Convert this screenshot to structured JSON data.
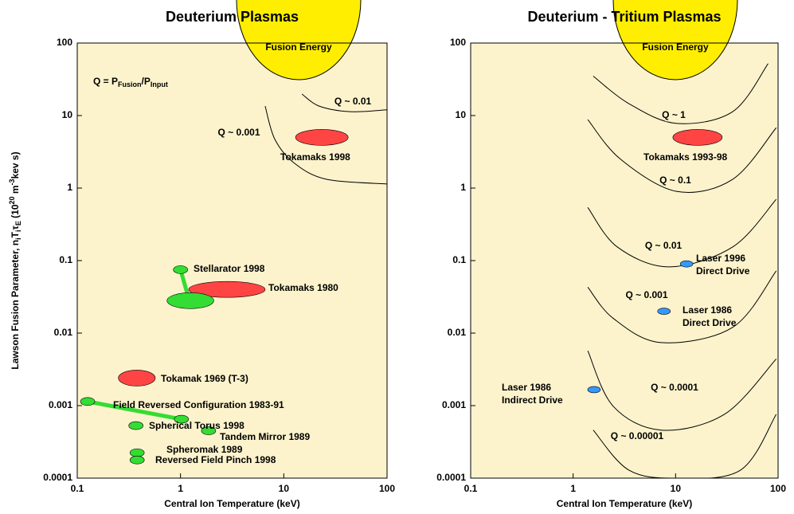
{
  "chart_data": [
    {
      "type": "scatter",
      "title": "Deuterium Plasmas",
      "xlabel": "Central Ion Temperature (keV)",
      "ylabel": [
        {
          "text": "Lawson Fusion Parameter, n"
        },
        {
          "text": "i",
          "sub": true
        },
        {
          "text": "T"
        },
        {
          "text": "i",
          "sub": true
        },
        {
          "text": "τ"
        },
        {
          "text": "E",
          "sub": true
        },
        {
          "text": " (10"
        },
        {
          "text": "20",
          "sup": true
        },
        {
          "text": " m"
        },
        {
          "text": "-3",
          "sup": true
        },
        {
          "text": "kev s)"
        }
      ],
      "annotation": [
        {
          "text": "Q = P"
        },
        {
          "text": "Fusion",
          "sub": true
        },
        {
          "text": "/P"
        },
        {
          "text": "Input",
          "sub": true
        }
      ],
      "region_label": "Fusion Energy",
      "xscale": "log",
      "yscale": "log",
      "xlim": [
        0.1,
        100
      ],
      "ylim": [
        0.0001,
        100
      ],
      "xticks": [
        0.1,
        1,
        10,
        100
      ],
      "yticks": [
        100,
        10,
        1,
        0.1,
        0.01,
        0.001,
        0.0001
      ],
      "background": "#fcf3cc",
      "curves": [
        {
          "name": "Q ~ 0.01",
          "x": [
            15,
            22,
            44,
            100
          ],
          "y": [
            19.8,
            13.5,
            11.3,
            12
          ]
        },
        {
          "name": "Q ~ 0.001",
          "x": [
            6.6,
            8.2,
            12.7,
            26,
            100
          ],
          "y": [
            13.5,
            4.7,
            2.2,
            1.32,
            1.14
          ]
        }
      ],
      "tracks": [
        {
          "x": [
            1.0,
            1.2
          ],
          "y": [
            0.075,
            0.03
          ],
          "color": "#33dd33"
        },
        {
          "name": [
            "Field Reversed Configuration 1983-91"
          ],
          "x": [
            0.126,
            1.02
          ],
          "y": [
            0.00114,
            0.00065
          ],
          "color": "#33dd33"
        }
      ],
      "regions": [
        {
          "name": [
            "Tokamaks 1998"
          ],
          "x": [
            13,
            42
          ],
          "y": 5,
          "color": "#ff4444"
        },
        {
          "name": [
            "Tokamaks  1980"
          ],
          "x": [
            1.2,
            6.6
          ],
          "y": 0.04,
          "color": "#ff4444"
        },
        {
          "name": [
            "Stellarator  1998"
          ],
          "x": 1.0,
          "y": 0.075,
          "color": "#33dd33"
        },
        {
          "x": [
            0.74,
            2.1
          ],
          "y": 0.028,
          "color": "#33dd33"
        },
        {
          "name": [
            "Tokamak  1969 (T-3)"
          ],
          "x": [
            0.25,
            0.57
          ],
          "y": 0.0024,
          "color": "#ff4444"
        },
        {
          "name": [
            "Spherical Torus  1998"
          ],
          "x": 0.37,
          "y": 0.00053,
          "color": "#33dd33"
        },
        {
          "name": [
            "Tandem Mirror 1989"
          ],
          "x": 1.87,
          "y": 0.00045,
          "color": "#33dd33"
        },
        {
          "name": [
            "Spheromak 1989"
          ],
          "x": 0.38,
          "y": 0.000224,
          "color": "#33dd33"
        },
        {
          "name": [
            "Reversed Field Pinch  1998"
          ],
          "x": 0.38,
          "y": 0.000178,
          "color": "#33dd33"
        }
      ]
    },
    {
      "type": "scatter",
      "title": "Deuterium - Tritium Plasmas",
      "xlabel": "Central Ion Temperature (keV)",
      "region_label": "Fusion Energy",
      "xscale": "log",
      "yscale": "log",
      "xlim": [
        0.1,
        100
      ],
      "ylim": [
        0.0001,
        100
      ],
      "xticks": [
        0.1,
        1,
        10,
        100
      ],
      "yticks": [
        100,
        10,
        1,
        0.1,
        0.01,
        0.001,
        0.0001
      ],
      "background": "#fcf3cc",
      "curves": [
        {
          "name": "Q ~ 1",
          "x": [
            1.57,
            3.5,
            10.2,
            36,
            80
          ],
          "y": [
            35,
            14.6,
            7.8,
            11.3,
            52
          ]
        },
        {
          "name": "Q ~ 0.1",
          "x": [
            1.39,
            2.9,
            10.2,
            36,
            96
          ],
          "y": [
            8.8,
            2.5,
            0.9,
            1.32,
            6.8
          ]
        },
        {
          "name": "Q ~ 0.01",
          "x": [
            1.39,
            2.7,
            8.6,
            36,
            96
          ],
          "y": [
            0.54,
            0.154,
            0.082,
            0.154,
            0.7
          ]
        },
        {
          "name": "Q ~ 0.001",
          "x": [
            1.39,
            2.46,
            7.2,
            36,
            96
          ],
          "y": [
            0.043,
            0.016,
            0.0074,
            0.012,
            0.072
          ]
        },
        {
          "name": "Q ~ 0.0001",
          "x": [
            1.39,
            2.46,
            7.2,
            30,
            96
          ],
          "y": [
            0.0057,
            0.00098,
            0.00046,
            0.00076,
            0.0044
          ]
        },
        {
          "name": "Q ~ 0.00001",
          "x": [
            1.57,
            3.5,
            10.2,
            43,
            96
          ],
          "y": [
            0.00046,
            0.000129,
            0.0001,
            0.000129,
            0.00076
          ]
        }
      ],
      "tracks": [],
      "regions": [
        {
          "name": [
            "Tokamaks 1993-98"
          ],
          "x": [
            9.4,
            28.5
          ],
          "y": 5,
          "color": "#ff4444"
        },
        {
          "name": [
            "Laser  1996",
            "Direct Drive"
          ],
          "x": 12.8,
          "y": 0.09,
          "color": "#3399ff"
        },
        {
          "name": [
            "Laser  1986",
            "Direct Drive"
          ],
          "x": 7.7,
          "y": 0.02,
          "color": "#3399ff"
        },
        {
          "name": [
            "Laser  1986",
            "Indirect Drive"
          ],
          "x": 1.6,
          "y": 0.00166,
          "color": "#3399ff"
        }
      ]
    }
  ]
}
